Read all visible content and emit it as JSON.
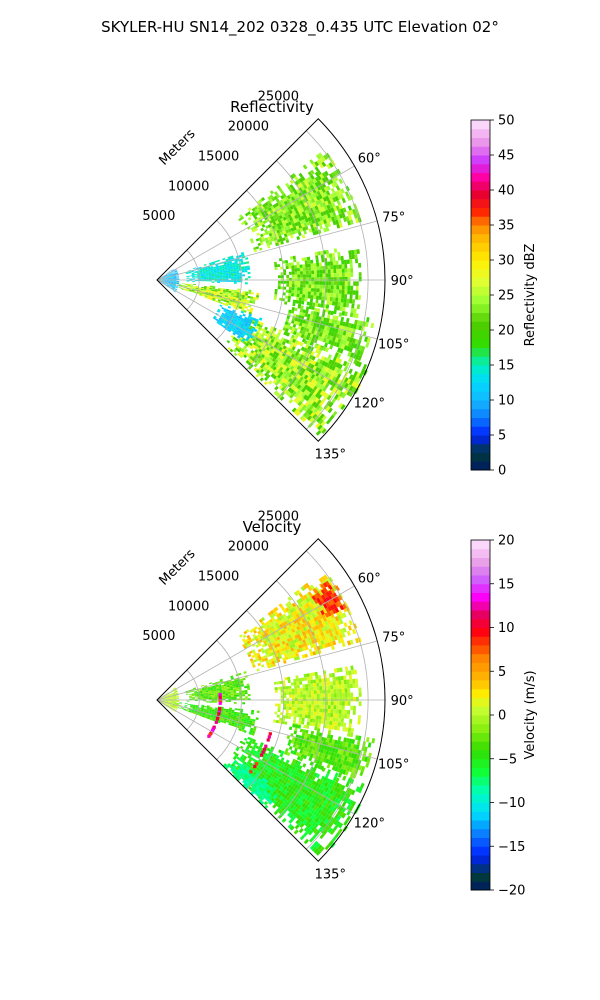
{
  "figure": {
    "suptitle": "SKYLER-HU  SN14_202  0328_0.435 UTC Elevation 02°"
  },
  "chart_data": [
    {
      "type": "heatmap",
      "projection": "polar-sector",
      "title": "Reflectivity",
      "radial_label": "Meters",
      "radial_ticks": [
        5000,
        10000,
        15000,
        20000,
        25000
      ],
      "radial_tick_labels": [
        "5000",
        "10000",
        "15000",
        "20000",
        "25000"
      ],
      "r_max": 27000,
      "theta_range_deg": [
        45,
        135
      ],
      "theta_ticks_deg": [
        60,
        75,
        90,
        105,
        120,
        135
      ],
      "theta_tick_labels": [
        "60°",
        "75°",
        "90°",
        "105°",
        "120°",
        "135°"
      ],
      "grid": true,
      "colorbar": {
        "label": "Reflectivity dBZ",
        "range": [
          0,
          50
        ],
        "ticks": [
          0,
          5,
          10,
          15,
          20,
          25,
          30,
          35,
          40,
          45,
          50
        ],
        "tick_labels": [
          "0",
          "5",
          "10",
          "15",
          "20",
          "25",
          "30",
          "35",
          "40",
          "45",
          "50"
        ]
      },
      "echo_regions": [
        {
          "theta": [
            52,
            74
          ],
          "r": [
            12000,
            25000
          ],
          "value": 23,
          "var": 4
        },
        {
          "theta": [
            72,
            92
          ],
          "r": [
            3500,
            11000
          ],
          "value": 14,
          "var": 2
        },
        {
          "theta": [
            96,
            110
          ],
          "r": [
            2000,
            12000
          ],
          "value": 25,
          "var": 5
        },
        {
          "theta": [
            80,
            100
          ],
          "r": [
            14000,
            24000
          ],
          "value": 22,
          "var": 4
        },
        {
          "theta": [
            100,
            112
          ],
          "r": [
            16000,
            26000
          ],
          "value": 22,
          "var": 4
        },
        {
          "theta": [
            112,
            133
          ],
          "r": [
            11000,
            27000
          ],
          "value": 24,
          "var": 5
        },
        {
          "theta": [
            110,
            125
          ],
          "r": [
            8000,
            13000
          ],
          "value": 12,
          "var": 2
        },
        {
          "theta": [
            55,
            125
          ],
          "r": [
            0,
            2600
          ],
          "value": 11,
          "var": 3
        }
      ]
    },
    {
      "type": "heatmap",
      "projection": "polar-sector",
      "title": "Velocity",
      "radial_label": "Meters",
      "radial_ticks": [
        5000,
        10000,
        15000,
        20000,
        25000
      ],
      "radial_tick_labels": [
        "5000",
        "10000",
        "15000",
        "20000",
        "25000"
      ],
      "r_max": 27000,
      "theta_range_deg": [
        45,
        135
      ],
      "theta_ticks_deg": [
        60,
        75,
        90,
        105,
        120,
        135
      ],
      "theta_tick_labels": [
        "60°",
        "75°",
        "90°",
        "105°",
        "120°",
        "135°"
      ],
      "grid": true,
      "colorbar": {
        "label": "Velocity (m/s)",
        "range": [
          -20,
          20
        ],
        "ticks": [
          -20,
          -15,
          -10,
          -5,
          0,
          5,
          10,
          15,
          20
        ],
        "tick_labels": [
          "−20",
          "−15",
          "−10",
          "−5",
          "0",
          "5",
          "10",
          "15",
          "20"
        ]
      },
      "echo_regions": [
        {
          "theta": [
            52,
            74
          ],
          "r": [
            12000,
            25000
          ],
          "value": 2,
          "var": 3
        },
        {
          "theta": [
            55,
            64
          ],
          "r": [
            22000,
            25000
          ],
          "value": 8,
          "var": 2
        },
        {
          "theta": [
            72,
            92
          ],
          "r": [
            3500,
            11000
          ],
          "value": -3,
          "var": 2
        },
        {
          "theta": [
            80,
            100
          ],
          "r": [
            14000,
            24000
          ],
          "value": 0,
          "var": 2
        },
        {
          "theta": [
            96,
            110
          ],
          "r": [
            2000,
            12000
          ],
          "value": -4,
          "var": 2
        },
        {
          "theta": [
            100,
            112
          ],
          "r": [
            16000,
            26000
          ],
          "value": -3,
          "var": 2
        },
        {
          "theta": [
            112,
            133
          ],
          "r": [
            11000,
            27000
          ],
          "value": -5,
          "var": 2
        },
        {
          "theta": [
            126,
            134
          ],
          "r": [
            11000,
            18000
          ],
          "value": -8,
          "var": 1
        },
        {
          "theta": [
            55,
            125
          ],
          "r": [
            0,
            2600
          ],
          "value": 0,
          "var": 2
        }
      ],
      "fold_rings": [
        {
          "r": 7500,
          "theta": [
            85,
            125
          ],
          "value": 11
        },
        {
          "r": 14000,
          "theta": [
            105,
            130
          ],
          "value": 11
        }
      ]
    }
  ]
}
